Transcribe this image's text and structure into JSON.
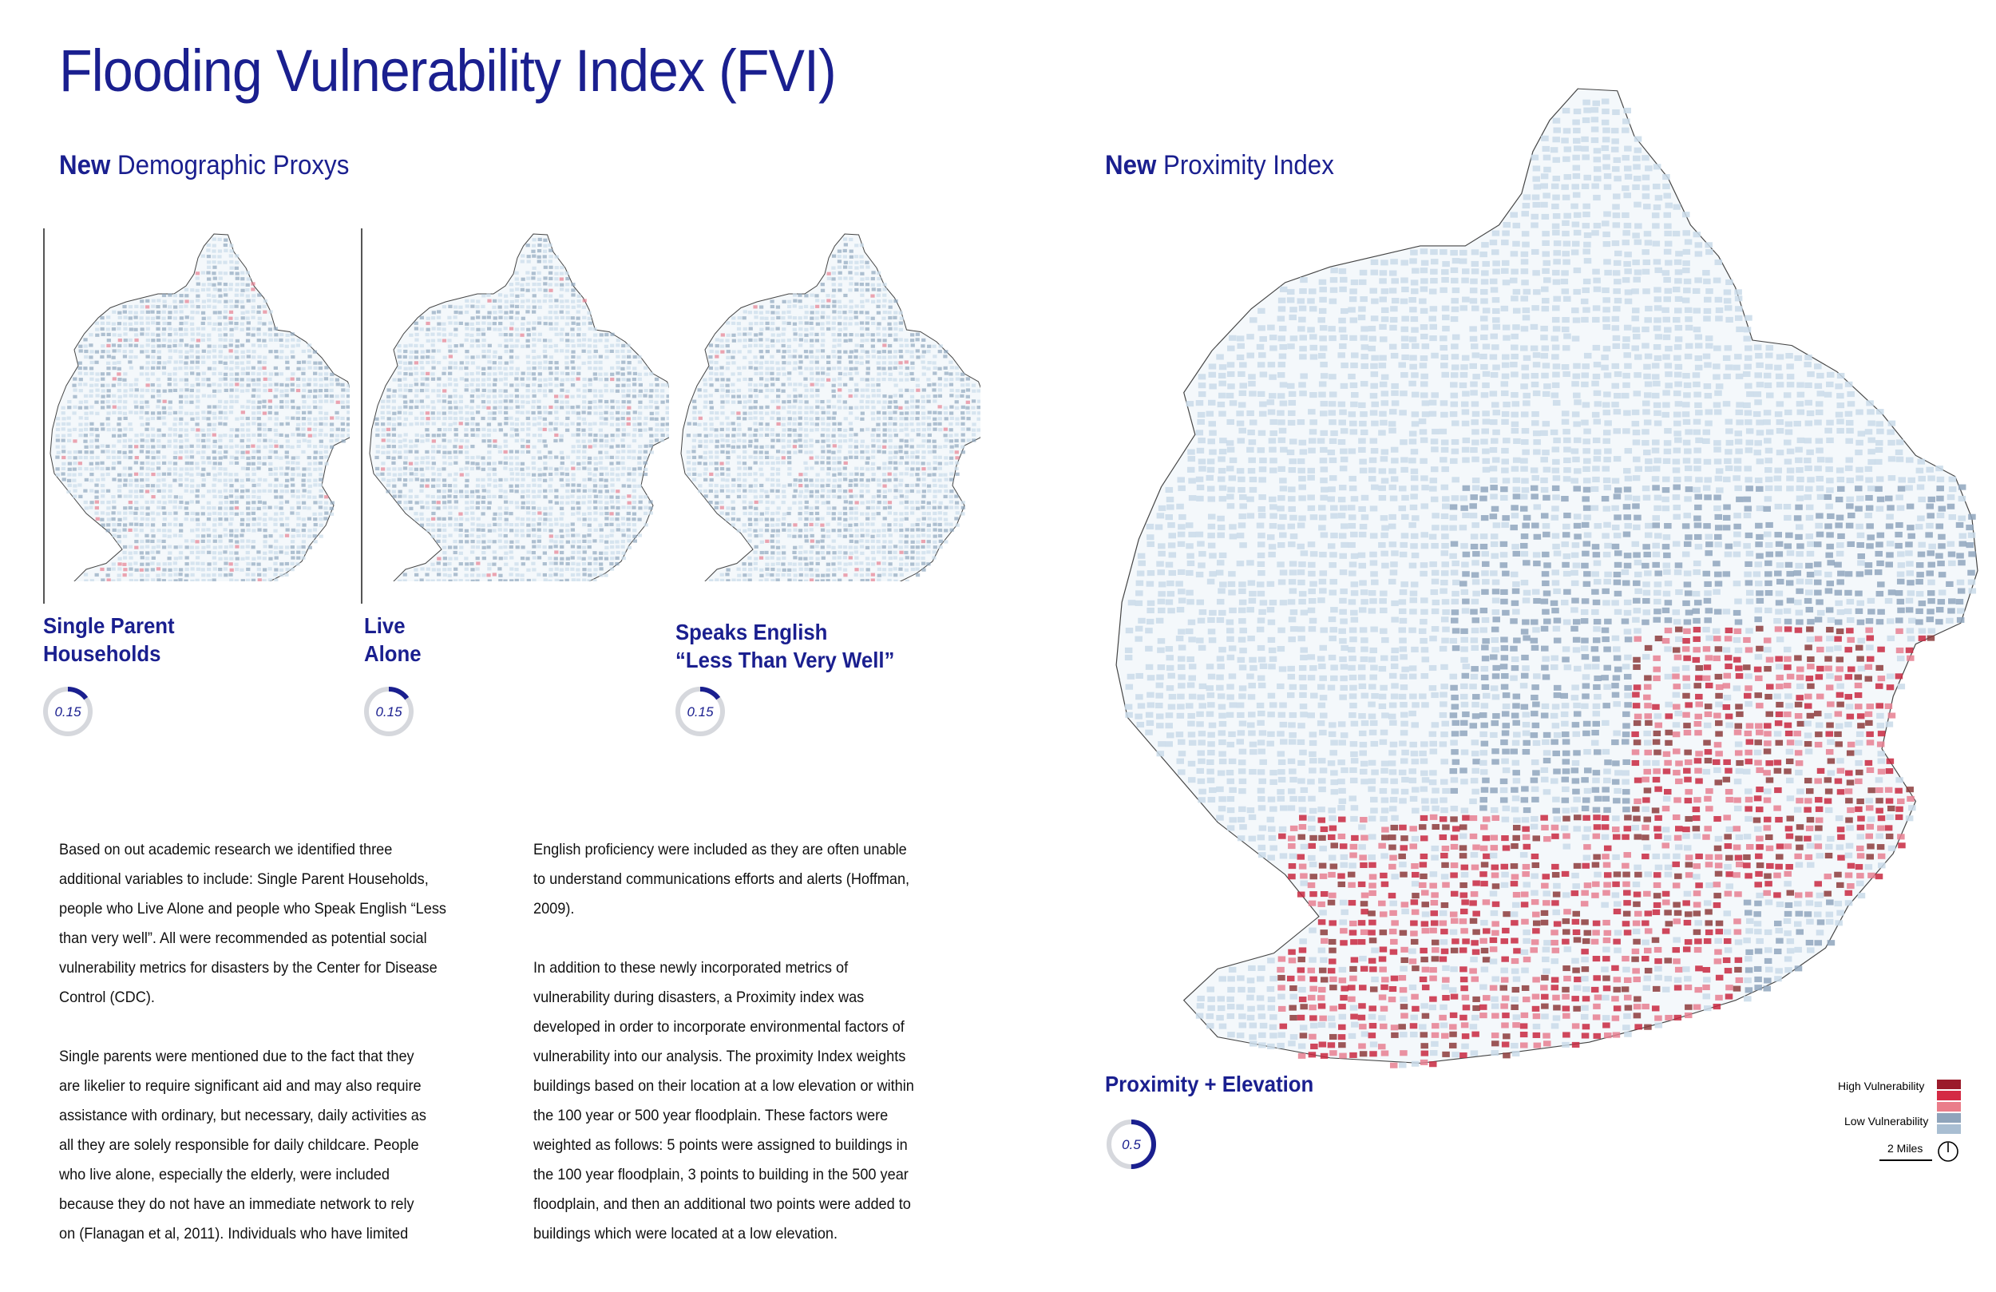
{
  "title": "Flooding Vulnerability Index (FVI)",
  "left_section": {
    "bold": "New",
    "rest": " Demographic Proxys"
  },
  "right_section": {
    "bold": "New",
    "rest": " Proximity Index"
  },
  "proxies": [
    {
      "line1": "Single Parent",
      "line2": "Households",
      "weight": "0.15",
      "fraction": 0.15
    },
    {
      "line1": "Live",
      "line2": "Alone",
      "weight": "0.15",
      "fraction": 0.15
    },
    {
      "line1": "Speaks English",
      "line2": "“Less Than Very Well”",
      "weight": "0.15",
      "fraction": 0.15
    }
  ],
  "proximity": {
    "label": "Proximity + Elevation",
    "weight": "0.5",
    "fraction": 0.5
  },
  "body_left": [
    "Based on out academic research we identified three",
    "additional variables to include: Single Parent Households,",
    "people who Live Alone and people who Speak English “Less",
    "than very well”. All were recommended as potential social",
    "vulnerability metrics for disasters by the Center for Disease",
    "Control (CDC).",
    "",
    "Single parents were mentioned due to the fact that they",
    "are likelier to require significant aid and may also require",
    "assistance with ordinary, but necessary, daily activities as",
    "all they are solely responsible for daily childcare. People",
    "who live alone, especially the elderly, were included",
    "because they do not have an immediate network to rely",
    "on (Flanagan et al, 2011). Individuals who have limited"
  ],
  "body_right": [
    "English proficiency were included as they are often unable",
    "to understand communications efforts and alerts (Hoffman,",
    "2009).",
    "",
    "In addition to these newly incorporated metrics of",
    "vulnerability during disasters, a Proximity index was",
    "developed in order to incorporate environmental factors of",
    "vulnerability into our analysis. The proximity Index weights",
    "buildings based on their location at a low elevation or within",
    "the 100 year or 500 year floodplain. These factors were",
    "weighted as follows: 5 points were assigned to buildings in",
    "the 100 year floodplain, 3 points to building in the 500 year",
    "floodplain, and then an additional two points were added to",
    "buildings which were located at a low elevation."
  ],
  "legend": {
    "high_label": "High Vulnerability",
    "low_label": "Low Vulnerability",
    "colors": [
      "#9b1b2b",
      "#d42a44",
      "#ea7d8a",
      "#8fa4bb",
      "#a9bed2"
    ]
  },
  "scale_bar": {
    "label": "2 Miles",
    "icon": "north-arrow-icon"
  },
  "map_colors": {
    "low_light": "#c9dbe9",
    "low_dark": "#8fa6bd",
    "high_pink": "#e67f90",
    "high_red": "#c8283f",
    "high_dark": "#8c3b3b"
  }
}
